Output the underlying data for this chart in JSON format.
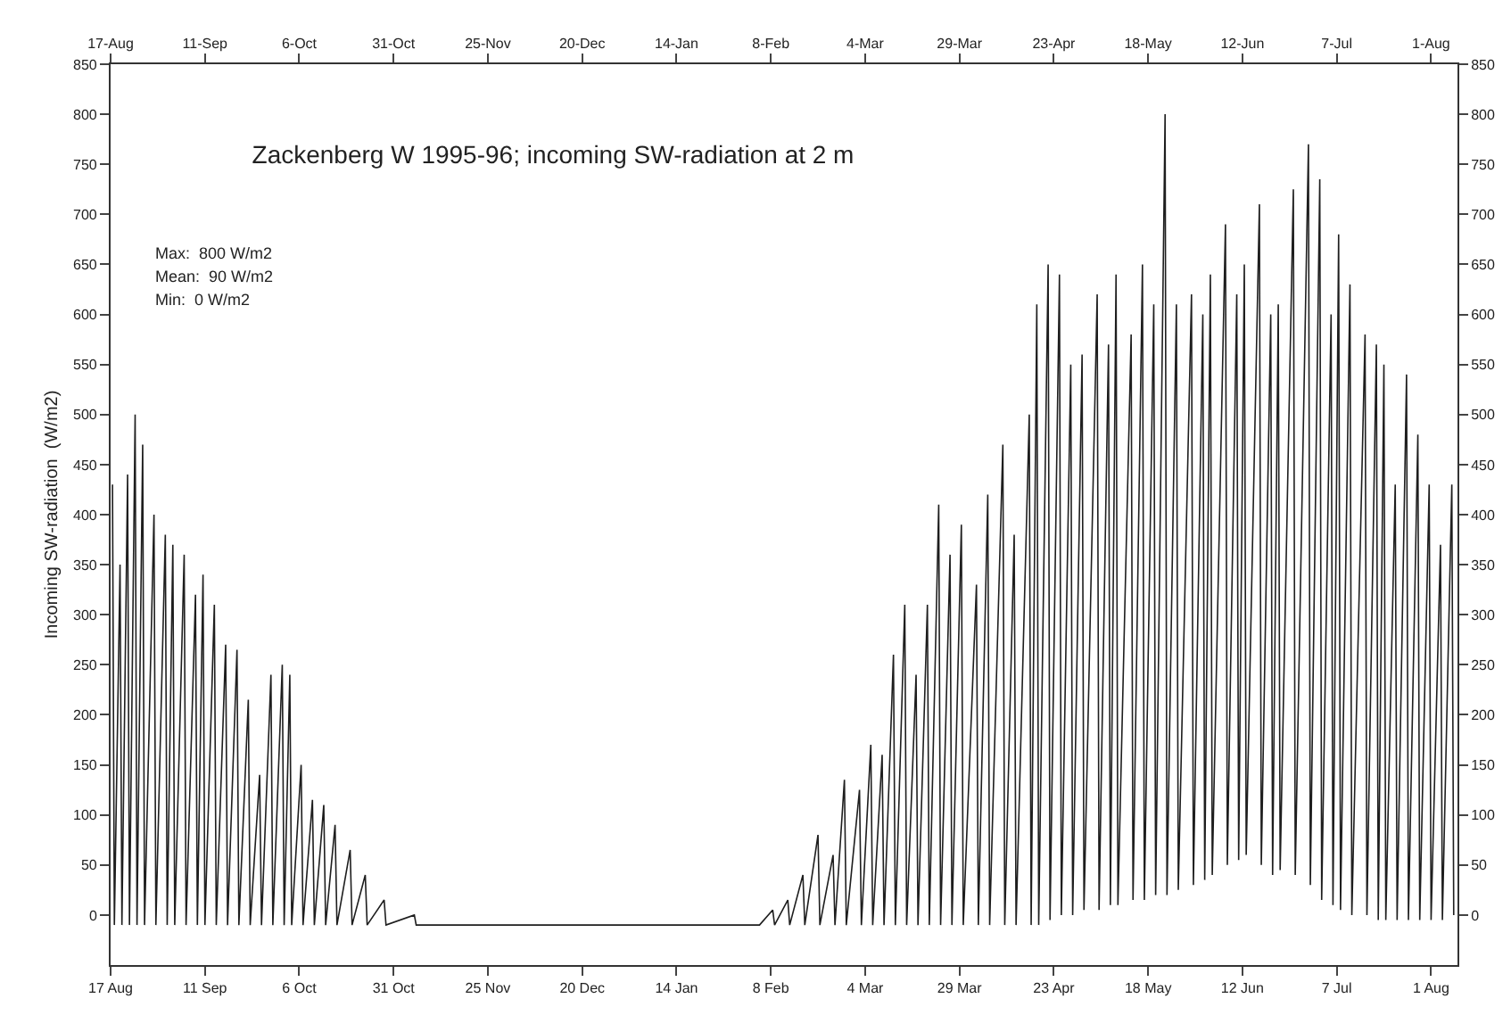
{
  "chart_data": {
    "type": "line",
    "title": "Zackenberg W 1995-96; incoming SW-radiation at 2 m",
    "ylabel": "Incoming SW-radiation  (W/m2)",
    "annotations": [
      "Max:  800 W/m2",
      "Mean:  90 W/m2",
      "Min:  0 W/m2"
    ],
    "x": [
      "1995-08-17T12:00",
      "1995-08-18T00:00",
      "1995-08-19T12:00",
      "1995-08-20T00:00",
      "1995-08-21T12:00",
      "1995-08-22T00:00",
      "1995-08-23T12:00",
      "1995-08-24T00:00",
      "1995-08-25T12:00",
      "1995-08-26T00:00",
      "1995-08-28T12:00",
      "1995-08-29T00:00",
      "1995-08-31T12:00",
      "1995-09-01T00:00",
      "1995-09-02T12:00",
      "1995-09-03T00:00",
      "1995-09-05T12:00",
      "1995-09-06T00:00",
      "1995-09-08T12:00",
      "1995-09-09T00:00",
      "1995-09-10T12:00",
      "1995-09-11T00:00",
      "1995-09-13T12:00",
      "1995-09-14T00:00",
      "1995-09-16T12:00",
      "1995-09-17T00:00",
      "1995-09-19T12:00",
      "1995-09-20T00:00",
      "1995-09-22T12:00",
      "1995-09-23T00:00",
      "1995-09-25T12:00",
      "1995-09-26T00:00",
      "1995-09-28T12:00",
      "1995-09-29T00:00",
      "1995-10-01T12:00",
      "1995-10-02T00:00",
      "1995-10-03T12:00",
      "1995-10-04T00:00",
      "1995-10-06T12:00",
      "1995-10-07T00:00",
      "1995-10-09T12:00",
      "1995-10-10T00:00",
      "1995-10-12T12:00",
      "1995-10-13T00:00",
      "1995-10-15T12:00",
      "1995-10-16T00:00",
      "1995-10-19T12:00",
      "1995-10-20T00:00",
      "1995-10-23T12:00",
      "1995-10-24T00:00",
      "1995-10-28T12:00",
      "1995-10-29T00:00",
      "1995-11-05T12:00",
      "1995-11-06T00:00",
      "1996-02-05T00:00",
      "1996-02-08T12:00",
      "1996-02-09T00:00",
      "1996-02-12T12:00",
      "1996-02-13T00:00",
      "1996-02-16T12:00",
      "1996-02-17T00:00",
      "1996-02-20T12:00",
      "1996-02-21T00:00",
      "1996-02-24T12:00",
      "1996-02-25T00:00",
      "1996-02-27T12:00",
      "1996-02-28T00:00",
      "1996-03-02T12:00",
      "1996-03-03T00:00",
      "1996-03-05T12:00",
      "1996-03-06T00:00",
      "1996-03-08T12:00",
      "1996-03-09T00:00",
      "1996-03-11T12:00",
      "1996-03-12T00:00",
      "1996-03-14T12:00",
      "1996-03-15T00:00",
      "1996-03-17T12:00",
      "1996-03-18T00:00",
      "1996-03-20T12:00",
      "1996-03-21T00:00",
      "1996-03-23T12:00",
      "1996-03-24T00:00",
      "1996-03-26T12:00",
      "1996-03-27T00:00",
      "1996-03-29T12:00",
      "1996-03-30T00:00",
      "1996-04-02T12:00",
      "1996-04-03T00:00",
      "1996-04-05T12:00",
      "1996-04-06T00:00",
      "1996-04-09T12:00",
      "1996-04-10T00:00",
      "1996-04-12T12:00",
      "1996-04-13T00:00",
      "1996-04-16T12:00",
      "1996-04-17T00:00",
      "1996-04-18T12:00",
      "1996-04-19T00:00",
      "1996-04-21T12:00",
      "1996-04-22T00:00",
      "1996-04-24T12:00",
      "1996-04-25T00:00",
      "1996-04-27T12:00",
      "1996-04-28T00:00",
      "1996-04-30T12:00",
      "1996-05-01T00:00",
      "1996-05-04T12:00",
      "1996-05-05T00:00",
      "1996-05-07T12:00",
      "1996-05-08T00:00",
      "1996-05-09T12:00",
      "1996-05-10T00:00",
      "1996-05-13T12:00",
      "1996-05-14T00:00",
      "1996-05-16T12:00",
      "1996-05-17T00:00",
      "1996-05-19T12:00",
      "1996-05-20T00:00",
      "1996-05-22T12:00",
      "1996-05-23T00:00",
      "1996-05-25T12:00",
      "1996-05-26T00:00",
      "1996-05-29T12:00",
      "1996-05-30T00:00",
      "1996-06-01T12:00",
      "1996-06-02T00:00",
      "1996-06-03T12:00",
      "1996-06-04T00:00",
      "1996-06-07T12:00",
      "1996-06-08T00:00",
      "1996-06-10T12:00",
      "1996-06-11T00:00",
      "1996-06-12T12:00",
      "1996-06-13T00:00",
      "1996-06-16T12:00",
      "1996-06-17T00:00",
      "1996-06-19T12:00",
      "1996-06-20T00:00",
      "1996-06-21T12:00",
      "1996-06-22T00:00",
      "1996-06-25T12:00",
      "1996-06-26T00:00",
      "1996-06-29T12:00",
      "1996-06-30T00:00",
      "1996-07-02T12:00",
      "1996-07-03T00:00",
      "1996-07-05T12:00",
      "1996-07-06T00:00",
      "1996-07-07T12:00",
      "1996-07-08T00:00",
      "1996-07-10T12:00",
      "1996-07-11T00:00",
      "1996-07-14T12:00",
      "1996-07-15T00:00",
      "1996-07-17T12:00",
      "1996-07-18T00:00",
      "1996-07-19T12:00",
      "1996-07-20T00:00",
      "1996-07-22T12:00",
      "1996-07-23T00:00",
      "1996-07-25T12:00",
      "1996-07-26T00:00",
      "1996-07-28T12:00",
      "1996-07-29T00:00",
      "1996-07-31T12:00",
      "1996-08-01T00:00",
      "1996-08-03T12:00",
      "1996-08-04T00:00",
      "1996-08-06T12:00",
      "1996-08-07T00:00"
    ],
    "series": [
      {
        "color": "#1e1e1e",
        "values": [
          430,
          -10,
          350,
          -10,
          440,
          -10,
          500,
          -10,
          470,
          -10,
          400,
          -10,
          380,
          -10,
          370,
          -10,
          360,
          -10,
          320,
          -10,
          340,
          -10,
          310,
          -10,
          270,
          -10,
          265,
          -10,
          215,
          -10,
          140,
          -10,
          240,
          -10,
          250,
          -10,
          240,
          -10,
          150,
          -10,
          115,
          -10,
          110,
          -10,
          90,
          -10,
          65,
          -10,
          40,
          -10,
          15,
          -10,
          0,
          -10,
          -10,
          5,
          -10,
          15,
          -10,
          40,
          -10,
          80,
          -10,
          60,
          -10,
          135,
          -10,
          125,
          -10,
          170,
          -10,
          160,
          -10,
          260,
          -10,
          310,
          -10,
          240,
          -10,
          310,
          -10,
          410,
          -10,
          360,
          -10,
          390,
          -10,
          330,
          -10,
          420,
          -10,
          470,
          -10,
          380,
          -10,
          500,
          -10,
          610,
          -10,
          650,
          -5,
          640,
          0,
          550,
          0,
          560,
          5,
          620,
          5,
          570,
          10,
          640,
          10,
          580,
          15,
          650,
          15,
          610,
          20,
          800,
          20,
          610,
          25,
          620,
          30,
          600,
          35,
          640,
          40,
          690,
          50,
          620,
          55,
          650,
          60,
          710,
          50,
          600,
          40,
          610,
          45,
          725,
          40,
          770,
          30,
          735,
          15,
          600,
          10,
          680,
          5,
          630,
          0,
          580,
          0,
          570,
          -5,
          550,
          -5,
          430,
          -5,
          540,
          -5,
          480,
          -5,
          430,
          -5,
          370,
          -5,
          430,
          0
        ]
      }
    ],
    "xlim": [
      "1995-08-17",
      "1996-08-08"
    ],
    "xticks": [
      {
        "value": "1995-08-17",
        "label": "17 Aug"
      },
      {
        "value": "1995-09-11",
        "label": "11 Sep"
      },
      {
        "value": "1995-10-06",
        "label": "6 Oct"
      },
      {
        "value": "1995-10-31",
        "label": "31 Oct"
      },
      {
        "value": "1995-11-25",
        "label": "25 Nov"
      },
      {
        "value": "1995-12-20",
        "label": "20 Dec"
      },
      {
        "value": "1996-01-14",
        "label": "14 Jan"
      },
      {
        "value": "1996-02-08",
        "label": "8 Feb"
      },
      {
        "value": "1996-03-04",
        "label": "4 Mar"
      },
      {
        "value": "1996-03-29",
        "label": "29 Mar"
      },
      {
        "value": "1996-04-23",
        "label": "23 Apr"
      },
      {
        "value": "1996-05-18",
        "label": "18 May"
      },
      {
        "value": "1996-06-12",
        "label": "12 Jun"
      },
      {
        "value": "1996-07-07",
        "label": "7 Jul"
      },
      {
        "value": "1996-08-01",
        "label": "1 Aug"
      }
    ],
    "x2lim": [
      "1995-08-17",
      "1996-08-08"
    ],
    "x2ticks": [
      {
        "value": "1995-08-17",
        "label": "17-Aug"
      },
      {
        "value": "1995-09-11",
        "label": "11-Sep"
      },
      {
        "value": "1995-10-06",
        "label": "6-Oct"
      },
      {
        "value": "1995-10-31",
        "label": "31-Oct"
      },
      {
        "value": "1995-11-25",
        "label": "25-Nov"
      },
      {
        "value": "1995-12-20",
        "label": "20-Dec"
      },
      {
        "value": "1996-01-14",
        "label": "14-Jan"
      },
      {
        "value": "1996-02-08",
        "label": "8-Feb"
      },
      {
        "value": "1996-03-04",
        "label": "4-Mar"
      },
      {
        "value": "1996-03-29",
        "label": "29-Mar"
      },
      {
        "value": "1996-04-23",
        "label": "23-Apr"
      },
      {
        "value": "1996-05-18",
        "label": "18-May"
      },
      {
        "value": "1996-06-12",
        "label": "12-Jun"
      },
      {
        "value": "1996-07-07",
        "label": "7-Jul"
      },
      {
        "value": "1996-08-01",
        "label": "1-Aug"
      }
    ],
    "ylim": [
      -50,
      850
    ],
    "yticks": [
      0,
      50,
      100,
      150,
      200,
      250,
      300,
      350,
      400,
      450,
      500,
      550,
      600,
      650,
      700,
      750,
      800,
      850
    ],
    "y2lim": [
      -50,
      850
    ],
    "y2ticks": [
      0,
      50,
      100,
      150,
      200,
      250,
      300,
      350,
      400,
      450,
      500,
      550,
      600,
      650,
      700,
      750,
      800,
      850
    ],
    "grid": false,
    "marker": "none",
    "line_style": "solid"
  }
}
